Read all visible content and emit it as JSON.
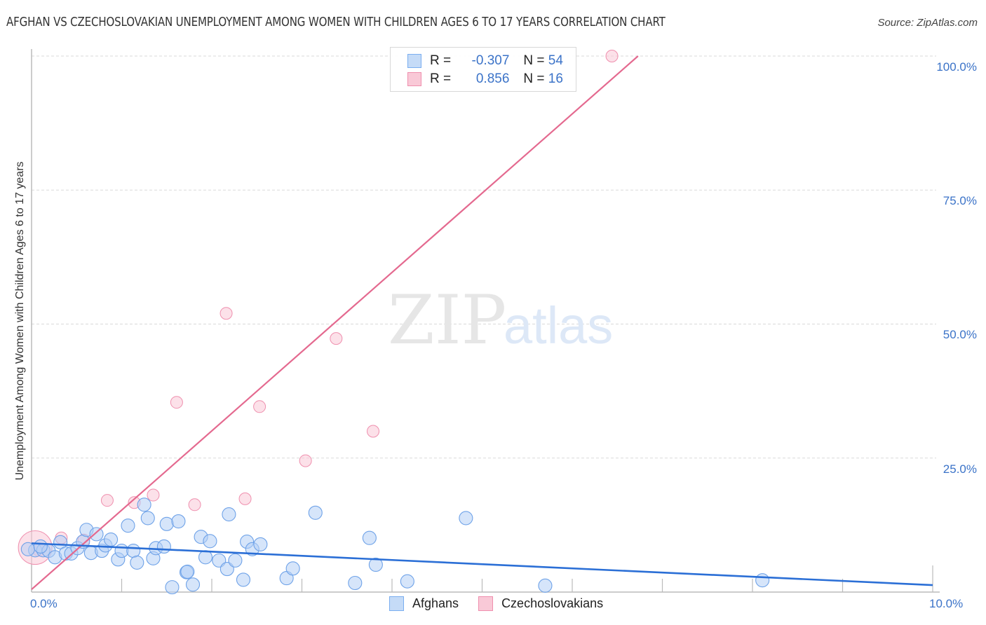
{
  "header": {
    "title": "AFGHAN VS CZECHOSLOVAKIAN UNEMPLOYMENT AMONG WOMEN WITH CHILDREN AGES 6 TO 17 YEARS CORRELATION CHART",
    "source": "Source: ZipAtlas.com"
  },
  "watermark": {
    "zip": "ZIP",
    "atlas": "atlas"
  },
  "legend": {
    "rows": [
      {
        "name": "Afghans",
        "r_label": "R =",
        "r_value": "-0.307",
        "n_label": "N =",
        "n_value": "54",
        "color": "#7aaef0",
        "fill": "#c5dbf7"
      },
      {
        "name": "Czechoslovakians",
        "r_label": "R =",
        "r_value": "0.856",
        "n_label": "N =",
        "n_value": "16",
        "color": "#ef8fae",
        "fill": "#f9c9d7"
      }
    ]
  },
  "axes": {
    "ylabel": "Unemployment Among Women with Children Ages 6 to 17 years",
    "y_ticks": [
      "100.0%",
      "75.0%",
      "50.0%",
      "25.0%"
    ],
    "x_ticks": [
      "0.0%",
      "10.0%"
    ]
  },
  "colors": {
    "blue_line": "#2b6fd6",
    "pink_line": "#e4698f",
    "tick_text": "#3b73c8",
    "grid": "#d9d9d9"
  },
  "chart_data": {
    "type": "scatter",
    "title": "AFGHAN VS CZECHOSLOVAKIAN UNEMPLOYMENT AMONG WOMEN WITH CHILDREN AGES 6 TO 17 YEARS CORRELATION CHART",
    "xlabel": "",
    "ylabel": "Unemployment Among Women with Children Ages 6 to 17 years",
    "xlim": [
      0,
      10
    ],
    "ylim": [
      0,
      100
    ],
    "x_tick_labels": [
      "0.0%",
      "10.0%"
    ],
    "y_tick_labels": [
      "25.0%",
      "50.0%",
      "75.0%",
      "100.0%"
    ],
    "grid": true,
    "legend_position": "bottom",
    "series": [
      {
        "name": "Afghans",
        "r": -0.307,
        "n": 54,
        "trend": {
          "x": [
            0,
            10
          ],
          "y": [
            9.1,
            1.3
          ]
        },
        "points": [
          [
            0.04,
            7.8
          ],
          [
            0.13,
            7.8
          ],
          [
            0.19,
            7.7
          ],
          [
            0.26,
            6.5
          ],
          [
            0.32,
            9.3
          ],
          [
            0.38,
            7.2
          ],
          [
            0.44,
            7.2
          ],
          [
            0.51,
            8.2
          ],
          [
            0.57,
            9.4
          ],
          [
            0.61,
            11.6
          ],
          [
            0.66,
            7.3
          ],
          [
            0.72,
            10.8
          ],
          [
            0.78,
            7.7
          ],
          [
            0.82,
            8.7
          ],
          [
            0.88,
            9.8
          ],
          [
            0.96,
            6.1
          ],
          [
            1.0,
            7.7
          ],
          [
            1.07,
            12.4
          ],
          [
            1.13,
            7.7
          ],
          [
            1.17,
            5.5
          ],
          [
            1.25,
            16.3
          ],
          [
            1.29,
            13.8
          ],
          [
            1.35,
            6.3
          ],
          [
            1.38,
            8.2
          ],
          [
            1.47,
            8.5
          ],
          [
            1.5,
            12.7
          ],
          [
            1.56,
            0.9
          ],
          [
            1.63,
            13.2
          ],
          [
            1.72,
            3.7
          ],
          [
            1.73,
            3.8
          ],
          [
            1.79,
            1.4
          ],
          [
            1.88,
            10.3
          ],
          [
            1.93,
            6.5
          ],
          [
            1.98,
            9.5
          ],
          [
            2.08,
            5.9
          ],
          [
            2.17,
            4.3
          ],
          [
            2.19,
            14.5
          ],
          [
            2.26,
            5.9
          ],
          [
            2.35,
            2.3
          ],
          [
            2.39,
            9.4
          ],
          [
            2.45,
            8.0
          ],
          [
            2.54,
            8.9
          ],
          [
            2.83,
            2.6
          ],
          [
            2.9,
            4.4
          ],
          [
            3.15,
            14.8
          ],
          [
            3.59,
            1.7
          ],
          [
            3.75,
            10.1
          ],
          [
            3.82,
            5.1
          ],
          [
            4.17,
            2.0
          ],
          [
            4.82,
            13.8
          ],
          [
            5.7,
            1.2
          ],
          [
            8.11,
            2.2
          ],
          [
            -0.04,
            8.0
          ],
          [
            0.1,
            8.5
          ]
        ]
      },
      {
        "name": "Czechoslovakians",
        "r": 0.856,
        "n": 16,
        "trend": {
          "x": [
            0,
            6.73
          ],
          "y": [
            0.5,
            100
          ]
        },
        "points": [
          [
            0.08,
            7.8
          ],
          [
            0.33,
            10.1
          ],
          [
            0.58,
            9.7
          ],
          [
            0.84,
            17.1
          ],
          [
            1.14,
            16.7
          ],
          [
            1.35,
            18.1
          ],
          [
            1.61,
            35.4
          ],
          [
            1.81,
            16.3
          ],
          [
            2.16,
            52.0
          ],
          [
            2.37,
            17.4
          ],
          [
            2.53,
            34.6
          ],
          [
            3.04,
            24.5
          ],
          [
            3.38,
            47.3
          ],
          [
            3.79,
            30.0
          ],
          [
            6.44,
            100.0
          ],
          [
            0.04,
            8.3
          ]
        ]
      }
    ]
  }
}
